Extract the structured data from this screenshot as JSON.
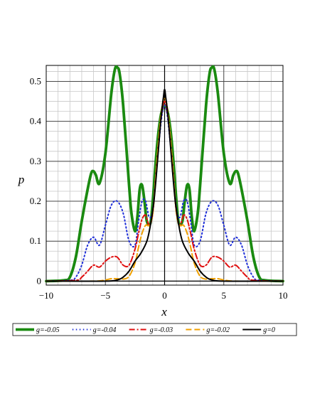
{
  "chart_data": {
    "type": "line",
    "title": "",
    "xlabel": "x",
    "ylabel": "p",
    "xlim": [
      -10,
      10
    ],
    "ylim": [
      -0.01,
      0.54
    ],
    "xticks": [
      -10,
      -5,
      0,
      5,
      10
    ],
    "yticks": [
      0,
      0.1,
      0.2,
      0.3,
      0.4,
      0.5
    ],
    "xtick_labels": [
      "−10",
      "−5",
      "0",
      "5",
      "10"
    ],
    "ytick_labels": [
      "0",
      "0.1",
      "0.2",
      "0.3",
      "0.4",
      "0.5"
    ],
    "grid": true,
    "minor_grid": true,
    "legend_position": "bottom",
    "series": [
      {
        "name": "g=-0.05",
        "color": "#1a8a10",
        "style": "solid-thick",
        "x": [
          -10,
          -8.5,
          -8,
          -7.5,
          -7,
          -6.5,
          -6.2,
          -6,
          -5.8,
          -5.5,
          -5,
          -4.5,
          -4.2,
          -4,
          -3.8,
          -3.5,
          -3,
          -2.8,
          -2.5,
          -2.3,
          -2.1,
          -1.9,
          -1.7,
          -1.5,
          -1.2,
          -1,
          -0.8,
          -0.6,
          -0.4,
          -0.2,
          0,
          0.2,
          0.4,
          0.6,
          0.8,
          1,
          1.2,
          1.5,
          1.7,
          1.9,
          2.1,
          2.3,
          2.5,
          2.8,
          3,
          3.5,
          3.8,
          4,
          4.2,
          4.5,
          5,
          5.5,
          5.8,
          6,
          6.2,
          6.5,
          7,
          7.5,
          8,
          8.5,
          10
        ],
        "y": [
          0,
          0.002,
          0.01,
          0.06,
          0.15,
          0.23,
          0.27,
          0.275,
          0.265,
          0.245,
          0.32,
          0.47,
          0.53,
          0.535,
          0.52,
          0.44,
          0.24,
          0.17,
          0.125,
          0.16,
          0.23,
          0.24,
          0.2,
          0.15,
          0.145,
          0.2,
          0.28,
          0.35,
          0.4,
          0.43,
          0.44,
          0.43,
          0.4,
          0.35,
          0.28,
          0.2,
          0.145,
          0.15,
          0.2,
          0.24,
          0.23,
          0.16,
          0.125,
          0.17,
          0.24,
          0.44,
          0.52,
          0.535,
          0.53,
          0.47,
          0.32,
          0.245,
          0.265,
          0.275,
          0.27,
          0.23,
          0.15,
          0.06,
          0.01,
          0.002,
          0
        ]
      },
      {
        "name": "g=-0.04",
        "color": "#1f2fd8",
        "style": "dotted",
        "x": [
          -10,
          -8,
          -7.5,
          -7,
          -6.5,
          -6,
          -5.5,
          -5,
          -4.5,
          -4,
          -3.5,
          -3,
          -2.5,
          -2.2,
          -1.9,
          -1.6,
          -1.3,
          -1,
          -0.7,
          -0.4,
          -0.2,
          0,
          0.2,
          0.4,
          0.7,
          1,
          1.3,
          1.6,
          1.9,
          2.2,
          2.5,
          3,
          3.5,
          4,
          4.5,
          5,
          5.5,
          6,
          6.5,
          7,
          7.5,
          8,
          10
        ],
        "y": [
          0,
          0.002,
          0.01,
          0.04,
          0.09,
          0.11,
          0.09,
          0.14,
          0.19,
          0.2,
          0.17,
          0.1,
          0.09,
          0.15,
          0.2,
          0.2,
          0.16,
          0.18,
          0.28,
          0.37,
          0.42,
          0.44,
          0.42,
          0.37,
          0.28,
          0.18,
          0.16,
          0.2,
          0.2,
          0.15,
          0.09,
          0.1,
          0.17,
          0.2,
          0.19,
          0.14,
          0.09,
          0.11,
          0.09,
          0.04,
          0.01,
          0.002,
          0
        ]
      },
      {
        "name": "g=-0.03",
        "color": "#e01010",
        "style": "dash-dot",
        "x": [
          -10,
          -7.5,
          -7,
          -6.5,
          -6,
          -5.5,
          -5,
          -4.5,
          -4,
          -3.5,
          -3,
          -2.5,
          -2.2,
          -1.9,
          -1.6,
          -1.3,
          -1,
          -0.7,
          -0.4,
          -0.2,
          0,
          0.2,
          0.4,
          0.7,
          1,
          1.3,
          1.6,
          1.9,
          2.2,
          2.5,
          3,
          3.5,
          4,
          4.5,
          5,
          5.5,
          6,
          6.5,
          7,
          7.5,
          10
        ],
        "y": [
          0,
          0.002,
          0.01,
          0.025,
          0.04,
          0.035,
          0.05,
          0.06,
          0.06,
          0.04,
          0.04,
          0.08,
          0.12,
          0.155,
          0.165,
          0.14,
          0.17,
          0.28,
          0.38,
          0.43,
          0.45,
          0.43,
          0.38,
          0.28,
          0.17,
          0.14,
          0.165,
          0.155,
          0.12,
          0.08,
          0.04,
          0.04,
          0.06,
          0.06,
          0.05,
          0.035,
          0.04,
          0.025,
          0.01,
          0.002,
          0
        ]
      },
      {
        "name": "g=-0.02",
        "color": "#f0a000",
        "style": "dashed",
        "x": [
          -10,
          -6,
          -5,
          -4.5,
          -4,
          -3.5,
          -3,
          -2.5,
          -2.2,
          -1.9,
          -1.6,
          -1.3,
          -1,
          -0.7,
          -0.4,
          -0.2,
          0,
          0.2,
          0.4,
          0.7,
          1,
          1.3,
          1.6,
          1.9,
          2.2,
          2.5,
          3,
          3.5,
          4,
          4.5,
          5,
          6,
          10
        ],
        "y": [
          0,
          0,
          0.003,
          0.006,
          0.006,
          0.005,
          0.012,
          0.045,
          0.085,
          0.12,
          0.14,
          0.14,
          0.17,
          0.28,
          0.39,
          0.44,
          0.46,
          0.44,
          0.39,
          0.28,
          0.17,
          0.14,
          0.14,
          0.12,
          0.085,
          0.045,
          0.012,
          0.005,
          0.006,
          0.006,
          0.003,
          0,
          0
        ]
      },
      {
        "name": "g=0",
        "color": "#000000",
        "style": "solid",
        "x": [
          -10,
          -5,
          -4,
          -3.5,
          -3,
          -2.5,
          -2,
          -1.5,
          -1.2,
          -0.9,
          -0.6,
          -0.3,
          -0.1,
          0,
          0.1,
          0.3,
          0.6,
          0.9,
          1.2,
          1.5,
          2,
          2.5,
          3,
          3.5,
          4,
          5,
          10
        ],
        "y": [
          0,
          0,
          0.003,
          0.01,
          0.025,
          0.05,
          0.07,
          0.1,
          0.14,
          0.2,
          0.3,
          0.41,
          0.46,
          0.48,
          0.46,
          0.41,
          0.3,
          0.2,
          0.14,
          0.1,
          0.07,
          0.05,
          0.025,
          0.01,
          0.003,
          0,
          0
        ]
      }
    ]
  }
}
